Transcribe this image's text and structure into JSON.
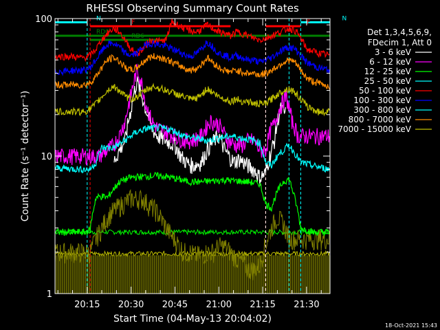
{
  "chart_data": {
    "type": "line",
    "title": "RHESSI Observing Summary Count Rates",
    "xlabel": "Start Time (04-May-13 20:04:02)",
    "ylabel": "Count Rate (s⁻¹ detector⁻¹)",
    "yscale": "log",
    "ylim": [
      1,
      100
    ],
    "xlim_minutes": [
      0,
      94
    ],
    "x_ticks": [
      {
        "label": "20:15",
        "min": 11
      },
      {
        "label": "20:30",
        "min": 26
      },
      {
        "label": "20:45",
        "min": 41
      },
      {
        "label": "21:00",
        "min": 56
      },
      {
        "label": "21:15",
        "min": 71
      },
      {
        "label": "21:30",
        "min": 86
      }
    ],
    "y_ticks": [
      {
        "label": "1",
        "value": 1
      },
      {
        "label": "10",
        "value": 10
      },
      {
        "label": "100",
        "value": 100
      }
    ],
    "legend_header": [
      "Det 1,3,4,5,6,9,",
      "FDecim 1, Att 0"
    ],
    "series": [
      {
        "name": "3 - 6 keV",
        "color": "#ffffff",
        "x": [
          0,
          12,
          15,
          20,
          24,
          26,
          28,
          29,
          31,
          33,
          35,
          38,
          41,
          43,
          45,
          47,
          50,
          53,
          56,
          58,
          61,
          63,
          66,
          68,
          70,
          72,
          74,
          75,
          77,
          79,
          80,
          82,
          84
        ],
        "y": [
          null,
          null,
          null,
          9,
          13,
          22,
          35,
          30,
          22,
          16,
          14,
          13,
          12,
          10,
          9,
          8.5,
          9,
          12,
          14,
          11,
          9,
          9.5,
          8.5,
          8,
          7,
          7.5,
          11,
          13,
          22,
          20,
          null,
          null,
          null
        ]
      },
      {
        "name": "6 - 12 keV",
        "color": "#ff00ff",
        "x": [
          15,
          18,
          20,
          22,
          24,
          26,
          28,
          29,
          31,
          33,
          35,
          38,
          41,
          44,
          47,
          50,
          53,
          56,
          59,
          62,
          64,
          66,
          68,
          70,
          72,
          74,
          75,
          77,
          79,
          81,
          83
        ],
        "y": [
          10,
          11,
          12,
          14,
          18,
          28,
          42,
          38,
          24,
          18,
          16,
          15,
          14,
          13,
          13,
          14,
          18,
          17,
          13,
          12,
          12,
          13,
          13,
          11,
          11,
          16,
          17,
          23,
          27,
          18,
          14
        ]
      },
      {
        "name": "12 - 25 keV",
        "color": "#00ff00",
        "x": [
          0,
          8,
          10,
          12,
          14,
          16,
          18,
          22,
          26,
          30,
          34,
          38,
          42,
          46,
          50,
          54,
          58,
          62,
          66,
          70,
          72,
          74,
          76,
          78,
          80,
          84,
          88,
          92,
          94
        ],
        "y": [
          2.8,
          2.8,
          2.8,
          2.9,
          5.0,
          5.1,
          5.0,
          6.5,
          7.0,
          7.1,
          7.2,
          7.1,
          6.8,
          6.5,
          6.5,
          6.6,
          6.7,
          6.6,
          6.5,
          6.3,
          4.5,
          4.2,
          5.5,
          6.5,
          6.8,
          3.0,
          2.8,
          2.8,
          2.8
        ]
      },
      {
        "name": "25 - 50 keV",
        "color": "#00ffff",
        "x": [
          0,
          10,
          12,
          14,
          16,
          20,
          24,
          28,
          32,
          36,
          40,
          44,
          48,
          52,
          56,
          60,
          64,
          68,
          70,
          72,
          74,
          76,
          78,
          80,
          84,
          88,
          94
        ],
        "y": [
          8.2,
          8.0,
          8.0,
          9.0,
          11.5,
          11.5,
          13,
          15,
          16,
          16,
          15.5,
          14,
          13.5,
          13,
          13.5,
          14,
          13.5,
          13,
          12.5,
          9.0,
          8.5,
          10,
          11,
          12,
          9,
          8.5,
          8.0
        ]
      },
      {
        "name": "50 - 100 keV",
        "color": "#ff0000",
        "x": [
          0,
          6,
          8,
          10,
          12,
          14,
          16,
          18,
          20,
          22,
          24,
          26,
          28,
          30,
          32,
          34,
          36,
          38,
          40,
          42,
          44,
          46,
          48,
          50,
          52,
          54,
          56,
          58,
          60,
          62,
          64,
          66,
          68,
          70,
          72,
          74,
          76,
          78,
          80,
          82,
          84,
          86,
          88,
          90,
          92,
          94
        ],
        "y": [
          53,
          53,
          52,
          52,
          54,
          60,
          70,
          78,
          85,
          80,
          70,
          60,
          55,
          60,
          68,
          70,
          68,
          70,
          95,
          90,
          85,
          82,
          80,
          83,
          90,
          85,
          80,
          78,
          75,
          80,
          78,
          75,
          72,
          70,
          72,
          75,
          78,
          82,
          85,
          82,
          72,
          60,
          58,
          56,
          55,
          54
        ]
      },
      {
        "name": "100 - 300 keV",
        "color": "#0000ff",
        "x": [
          0,
          6,
          8,
          10,
          12,
          14,
          16,
          18,
          20,
          22,
          24,
          26,
          28,
          30,
          32,
          34,
          36,
          38,
          40,
          42,
          44,
          46,
          48,
          50,
          52,
          54,
          56,
          58,
          60,
          62,
          64,
          66,
          68,
          70,
          72,
          74,
          76,
          78,
          80,
          82,
          84,
          86,
          88,
          90,
          92,
          94
        ],
        "y": [
          41,
          42,
          42,
          42,
          44,
          50,
          58,
          65,
          66,
          62,
          56,
          54,
          56,
          62,
          66,
          66,
          64,
          63,
          60,
          58,
          55,
          53,
          55,
          60,
          68,
          62,
          56,
          54,
          52,
          54,
          52,
          50,
          50,
          48,
          50,
          52,
          56,
          60,
          62,
          60,
          54,
          48,
          46,
          44,
          43,
          42
        ]
      },
      {
        "name": "300 - 800 keV",
        "color": "#00ffff",
        "x": [
          0,
          10,
          15,
          20,
          24,
          28,
          32,
          36,
          40,
          44,
          48,
          50,
          52,
          54,
          56,
          60,
          64,
          68,
          72,
          76,
          80,
          84,
          88,
          92,
          94
        ],
        "y": [
          null,
          null,
          null,
          null,
          null,
          null,
          null,
          null,
          null,
          null,
          null,
          null,
          null,
          null,
          null,
          null,
          null,
          null,
          null,
          null,
          null,
          null,
          null,
          null,
          null
        ]
      },
      {
        "name": "800 - 7000 keV",
        "color": "#ff8c00",
        "x": [
          0,
          6,
          8,
          10,
          12,
          14,
          16,
          18,
          20,
          22,
          24,
          26,
          28,
          30,
          32,
          34,
          36,
          38,
          40,
          42,
          44,
          46,
          48,
          50,
          52,
          54,
          56,
          58,
          60,
          62,
          64,
          66,
          68,
          70,
          72,
          74,
          76,
          78,
          80,
          82,
          84,
          86,
          88,
          90,
          92,
          94
        ],
        "y": [
          33,
          33,
          33,
          33,
          34,
          38,
          44,
          50,
          52,
          49,
          44,
          42,
          44,
          48,
          52,
          53,
          52,
          51,
          48,
          46,
          44,
          42,
          43,
          46,
          52,
          48,
          44,
          42,
          41,
          42,
          41,
          40,
          40,
          39,
          40,
          42,
          45,
          48,
          50,
          48,
          42,
          37,
          35,
          34,
          33,
          32
        ]
      },
      {
        "name": "7000 - 15000 keV",
        "color": "#bfbf00",
        "x": [
          0,
          6,
          8,
          10,
          12,
          14,
          16,
          18,
          20,
          22,
          24,
          26,
          28,
          30,
          32,
          34,
          36,
          38,
          40,
          42,
          44,
          46,
          48,
          50,
          52,
          54,
          56,
          58,
          60,
          62,
          64,
          66,
          68,
          70,
          72,
          74,
          76,
          78,
          80,
          82,
          84,
          86,
          88,
          90,
          92,
          94
        ],
        "y": [
          21,
          21,
          21,
          21,
          22,
          24,
          27,
          30,
          32,
          30,
          27,
          26,
          27,
          29,
          31,
          32,
          31,
          30,
          29,
          28,
          27,
          26,
          26,
          28,
          31,
          29,
          27,
          26,
          25,
          26,
          25,
          25,
          24,
          24,
          24,
          26,
          28,
          30,
          31,
          29,
          26,
          23,
          22,
          21,
          21,
          21
        ]
      }
    ],
    "lower_band_series": [
      {
        "color": "#00ff00",
        "level": 2.8,
        "from_min": 0,
        "to_min": 94
      },
      {
        "color": "#bfbf00",
        "level": 1.95,
        "from_min": 0,
        "to_min": 94
      }
    ],
    "olive_steps": {
      "color": "#808000",
      "x": [
        12,
        14,
        16,
        18,
        20,
        22,
        24,
        26,
        28,
        30,
        32,
        34,
        36,
        38,
        40,
        42,
        44,
        46,
        48,
        50,
        52,
        54,
        56,
        58,
        60,
        62,
        64,
        66,
        68,
        70,
        72,
        74,
        76,
        78,
        80
      ],
      "y": [
        2.0,
        2.5,
        3.0,
        3.6,
        4.0,
        4.3,
        4.6,
        4.9,
        4.9,
        4.9,
        4.4,
        4.1,
        3.6,
        3.0,
        2.6,
        2.3,
        2.0,
        2.0,
        1.9,
        1.9,
        2.0,
        2.0,
        2.2,
        2.2,
        2.0,
        1.8,
        1.7,
        1.5,
        1.5,
        1.6,
        2.3,
        3.0,
        3.6,
        3.2,
        2.5
      ]
    },
    "flag_bars": [
      {
        "label": "N",
        "color": "#00ffff",
        "level": 94,
        "from_min": 0,
        "to_min": 11
      },
      {
        "label": "N",
        "color": "#00ffff",
        "level": 94,
        "from_min": 84,
        "to_min": 94
      },
      {
        "label": "F",
        "color": "#ff0000",
        "level": 88,
        "from_min": 12,
        "to_min": 60
      },
      {
        "label": "F",
        "color": "#ff0000",
        "level": 88,
        "from_min": 72,
        "to_min": 84
      },
      {
        "label": "RD0",
        "color": "#008000",
        "level": 75,
        "from_min": 0,
        "to_min": 94
      },
      {
        "label": "RD6",
        "color": "#008000",
        "level": 70,
        "from_min": 12,
        "to_min": 38
      }
    ],
    "vertical_markers": [
      {
        "color": "#00ffff",
        "min": 11
      },
      {
        "color": "#00ffff",
        "min": 84
      },
      {
        "color": "#ff0000",
        "min": 12
      },
      {
        "color": "#ff0000",
        "min": 72
      },
      {
        "color": "#00ffff",
        "min": 80
      },
      {
        "color": "#ffffff",
        "min": 72
      }
    ],
    "footer_date": "18-Oct-2021 15:43"
  }
}
